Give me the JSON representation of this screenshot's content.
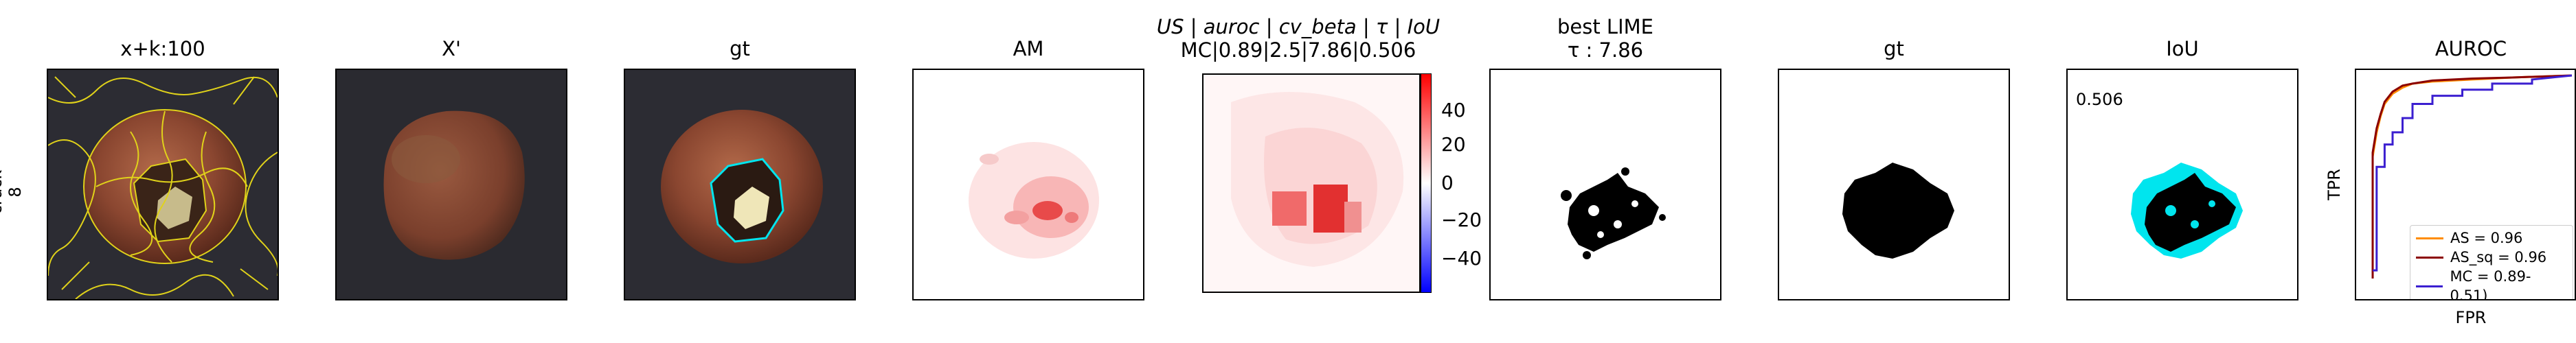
{
  "row_label": {
    "line1": "crack",
    "line2": "8"
  },
  "panels": [
    {
      "title": "x+k:100"
    },
    {
      "title": "X'"
    },
    {
      "title": "gt"
    },
    {
      "title": "AM"
    },
    {
      "title_line1": "US | auroc | cv_beta | τ | IoU",
      "title_line2": "MC|0.89|2.5|7.86|0.506"
    },
    {
      "title_line1": "best LIME",
      "title_line2": "τ : 7.86"
    },
    {
      "title": "gt"
    },
    {
      "title": "IoU",
      "value": "0.506"
    },
    {
      "title": "AUROC"
    }
  ],
  "colorbar": {
    "ticks": [
      "40",
      "20",
      "0",
      "−20",
      "−40"
    ],
    "range": [
      -57,
      57
    ],
    "colormap": "bwr"
  },
  "colors": {
    "cyan": "#00e5ee",
    "lime": "#e0d21a",
    "as": "#ff8c00",
    "as_sq": "#8b0000",
    "mc": "#3b1fd0"
  },
  "chart_data": {
    "type": "line",
    "title": "AUROC",
    "xlabel": "FPR",
    "ylabel": "TPR",
    "xlim": [
      0,
      1
    ],
    "ylim": [
      0,
      1
    ],
    "legend_position": "lower-right",
    "series": [
      {
        "name": "AS = 0.96",
        "color": "#ff8c00",
        "x": [
          0,
          0.0,
          0.02,
          0.04,
          0.06,
          0.1,
          0.15,
          0.2,
          0.3,
          0.5,
          0.7,
          1.0
        ],
        "y": [
          0,
          0.6,
          0.72,
          0.8,
          0.86,
          0.91,
          0.94,
          0.96,
          0.97,
          0.98,
          0.99,
          1.0
        ]
      },
      {
        "name": "AS_sq = 0.96",
        "color": "#8b0000",
        "x": [
          0,
          0.0,
          0.02,
          0.04,
          0.06,
          0.1,
          0.15,
          0.2,
          0.3,
          0.5,
          0.7,
          1.0
        ],
        "y": [
          0,
          0.62,
          0.74,
          0.81,
          0.87,
          0.92,
          0.95,
          0.96,
          0.975,
          0.985,
          0.99,
          1.0
        ]
      },
      {
        "name": "MC = 0.89-0.51)",
        "color": "#3b1fd0",
        "x": [
          0.0,
          0.02,
          0.02,
          0.06,
          0.06,
          0.1,
          0.1,
          0.15,
          0.15,
          0.2,
          0.2,
          0.3,
          0.3,
          0.45,
          0.45,
          0.6,
          0.6,
          0.8,
          0.8,
          1.0
        ],
        "y": [
          0.04,
          0.04,
          0.55,
          0.55,
          0.66,
          0.66,
          0.72,
          0.72,
          0.79,
          0.79,
          0.86,
          0.86,
          0.9,
          0.9,
          0.93,
          0.93,
          0.96,
          0.96,
          0.98,
          1.0
        ]
      }
    ]
  }
}
